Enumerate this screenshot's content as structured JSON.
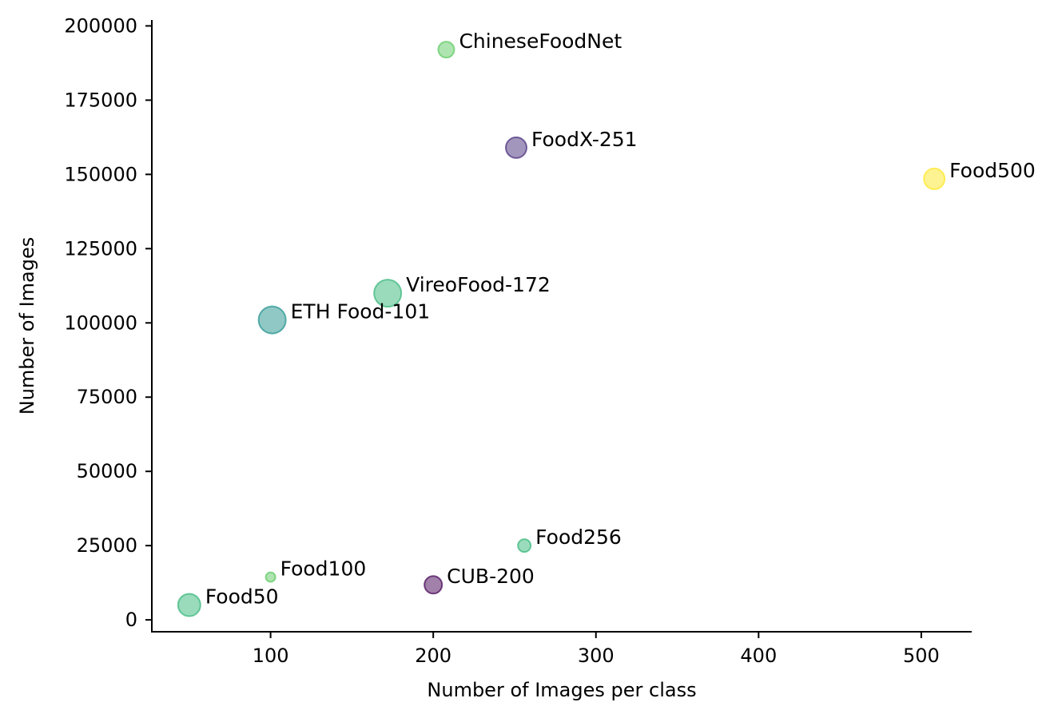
{
  "chart_data": {
    "type": "scatter",
    "xlabel": "Number of Images per class",
    "ylabel": "Number of Images",
    "xlim": [
      27,
      531
    ],
    "ylim": [
      -4000,
      202000
    ],
    "xticks": [
      100,
      200,
      300,
      400,
      500
    ],
    "yticks": [
      0,
      25000,
      50000,
      75000,
      100000,
      125000,
      150000,
      175000,
      200000
    ],
    "grid": false,
    "points": [
      {
        "label": "ChineseFoodNet",
        "x": 208,
        "y": 192000,
        "size": 10,
        "color": "#5ec962"
      },
      {
        "label": "FoodX-251",
        "x": 251,
        "y": 159000,
        "size": 13,
        "color": "#472d7b"
      },
      {
        "label": "Food500",
        "x": 508,
        "y": 148500,
        "size": 13,
        "color": "#fde725"
      },
      {
        "label": "VireoFood-172",
        "x": 172,
        "y": 110000,
        "size": 17,
        "color": "#35b779"
      },
      {
        "label": "ETH Food-101",
        "x": 101,
        "y": 101000,
        "size": 17,
        "color": "#21918c"
      },
      {
        "label": "Food256",
        "x": 256,
        "y": 25000,
        "size": 8,
        "color": "#35b779"
      },
      {
        "label": "Food100",
        "x": 100,
        "y": 14400,
        "size": 6,
        "color": "#5ec962"
      },
      {
        "label": "CUB-200",
        "x": 200,
        "y": 11800,
        "size": 11,
        "color": "#440154"
      },
      {
        "label": "Food50",
        "x": 50,
        "y": 5000,
        "size": 14,
        "color": "#35b779"
      }
    ]
  }
}
